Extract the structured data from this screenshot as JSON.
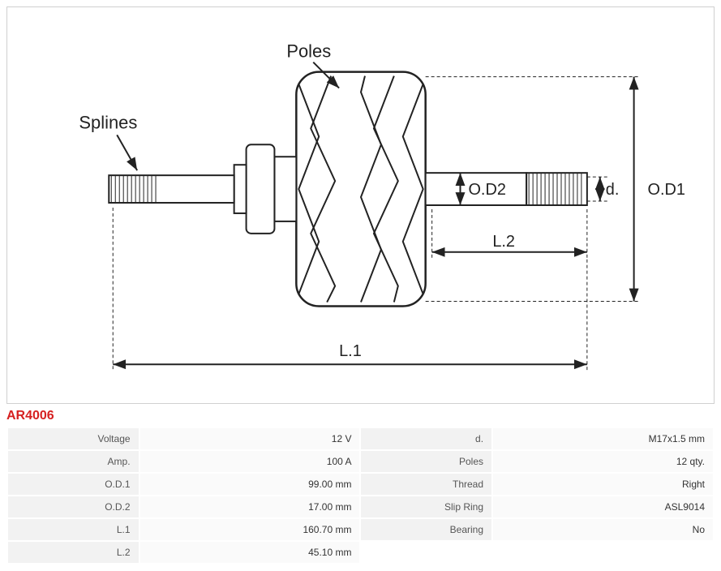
{
  "product_code": "AR4006",
  "diagram": {
    "type": "engineering-diagram",
    "labels": {
      "poles": "Poles",
      "splines": "Splines",
      "od1": "O.D1",
      "od2": "O.D2",
      "d": "d.",
      "l1": "L.1",
      "l2": "L.2"
    },
    "stroke_color": "#222222",
    "dashed_pattern": "4,3",
    "line_width_main": 2,
    "line_width_thin": 1,
    "arrow_size": 8
  },
  "specs": {
    "left": [
      {
        "key": "Voltage",
        "val": "12 V"
      },
      {
        "key": "Amp.",
        "val": "100 A"
      },
      {
        "key": "O.D.1",
        "val": "99.00 mm"
      },
      {
        "key": "O.D.2",
        "val": "17.00 mm"
      },
      {
        "key": "L.1",
        "val": "160.70 mm"
      },
      {
        "key": "L.2",
        "val": "45.10 mm"
      }
    ],
    "right": [
      {
        "key": "d.",
        "val": "M17x1.5 mm"
      },
      {
        "key": "Poles",
        "val": "12 qty."
      },
      {
        "key": "Thread",
        "val": "Right"
      },
      {
        "key": "Slip Ring",
        "val": "ASL9014"
      },
      {
        "key": "Bearing",
        "val": "No"
      }
    ]
  }
}
